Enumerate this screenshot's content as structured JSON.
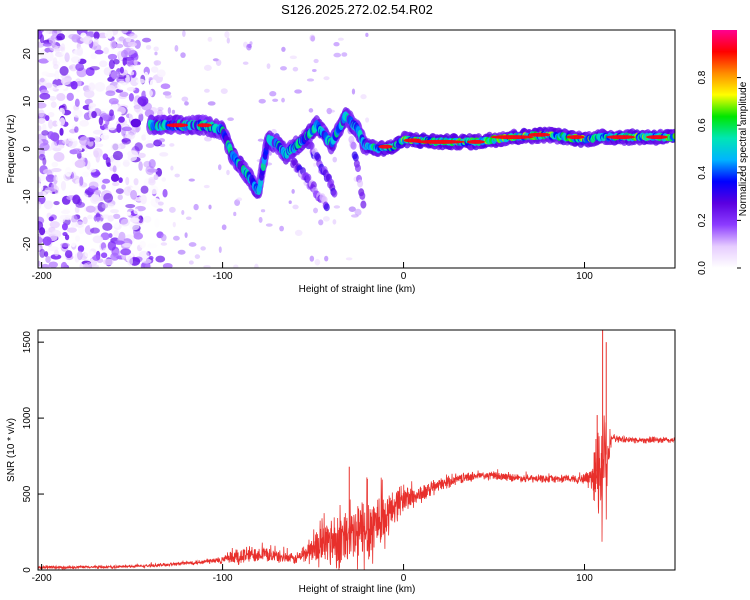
{
  "title": "S126.2025.272.02.54.R02",
  "colors": {
    "snr_line": "#e8302c",
    "palette_stops": [
      "#ffffff",
      "#e6ccff",
      "#8c3cff",
      "#5a00e0",
      "#0000ff",
      "#00b4ff",
      "#00e6b4",
      "#00e600",
      "#ffff00",
      "#ff8c00",
      "#ff0000",
      "#ff0090"
    ]
  },
  "chart_data": [
    {
      "type": "heatmap",
      "title": "S126.2025.272.02.54.R02",
      "xlabel": "Height of straight line (km)",
      "ylabel": "Frequency (Hz)",
      "xlim": [
        -202,
        150
      ],
      "ylim": [
        -25,
        25
      ],
      "xticks": [
        "-200",
        "-100",
        "0",
        "100"
      ],
      "yticks": [
        "20",
        "10",
        "0",
        "-10",
        "-20"
      ],
      "colorbar": {
        "label": "Normalized spectral amplitude",
        "range": [
          0,
          1
        ],
        "ticks": [
          "0.0",
          "0.2",
          "0.4",
          "0.6",
          "0.8"
        ],
        "placement": "right"
      },
      "ridge": {
        "description_points": [
          [
            -140,
            5
          ],
          [
            -130,
            5
          ],
          [
            -120,
            5
          ],
          [
            -110,
            5
          ],
          [
            -100,
            4
          ],
          [
            -95,
            -1
          ],
          [
            -85,
            -6
          ],
          [
            -80,
            -9
          ],
          [
            -75,
            2
          ],
          [
            -70,
            1
          ],
          [
            -65,
            -1
          ],
          [
            -55,
            2
          ],
          [
            -48,
            5
          ],
          [
            -40,
            1
          ],
          [
            -32,
            7
          ],
          [
            -25,
            4
          ],
          [
            -22,
            1
          ],
          [
            -15,
            0
          ],
          [
            -5,
            0.5
          ],
          [
            0,
            2
          ],
          [
            20,
            1.5
          ],
          [
            40,
            1.5
          ],
          [
            60,
            2.5
          ],
          [
            80,
            3
          ],
          [
            100,
            2
          ],
          [
            110,
            2.5
          ],
          [
            130,
            2.5
          ],
          [
            150,
            2.5
          ]
        ],
        "branches": [
          [
            [
              -70,
              2
            ],
            [
              -60,
              -3
            ],
            [
              -50,
              -8
            ],
            [
              -42,
              -12
            ]
          ],
          [
            [
              -55,
              3
            ],
            [
              -45,
              -4
            ],
            [
              -38,
              -9
            ]
          ],
          [
            [
              -30,
              5
            ],
            [
              -25,
              -5
            ],
            [
              -22,
              -12
            ]
          ]
        ]
      },
      "noise_region": [
        -202,
        -140
      ]
    },
    {
      "type": "line",
      "xlabel": "Height of straight line (km)",
      "ylabel": "SNR (10 * v/v)",
      "xlim": [
        -202,
        150
      ],
      "ylim": [
        0,
        1580
      ],
      "xticks": [
        "-200",
        "-100",
        "0",
        "100"
      ],
      "yticks": [
        "0",
        "500",
        "1000",
        "1500"
      ],
      "envelope": {
        "x": [
          -202,
          -180,
          -160,
          -140,
          -120,
          -110,
          -100,
          -90,
          -80,
          -70,
          -60,
          -50,
          -40,
          -30,
          -25,
          -20,
          -15,
          -10,
          -5,
          0,
          5,
          10,
          20,
          30,
          40,
          50,
          60,
          70,
          80,
          90,
          100,
          104,
          108,
          110,
          112,
          115,
          120,
          130,
          140,
          150
        ],
        "mean": [
          15,
          18,
          20,
          28,
          45,
          55,
          65,
          90,
          110,
          90,
          70,
          140,
          200,
          200,
          230,
          260,
          320,
          320,
          430,
          470,
          480,
          500,
          560,
          600,
          620,
          620,
          610,
          600,
          600,
          600,
          600,
          620,
          660,
          700,
          760,
          870,
          860,
          855,
          855,
          855
        ],
        "amp": [
          12,
          12,
          12,
          12,
          15,
          20,
          30,
          80,
          60,
          50,
          40,
          120,
          220,
          250,
          300,
          300,
          280,
          180,
          140,
          120,
          90,
          70,
          50,
          40,
          35,
          35,
          30,
          30,
          30,
          30,
          40,
          150,
          400,
          600,
          450,
          30,
          25,
          25,
          25,
          25
        ]
      },
      "spikes": [
        [
          -30,
          680
        ],
        [
          -20,
          600
        ],
        [
          110,
          1580
        ],
        [
          112,
          1500
        ],
        [
          107,
          1020
        ]
      ],
      "series": [
        {
          "values_description": "dense noisy trace"
        }
      ]
    }
  ]
}
